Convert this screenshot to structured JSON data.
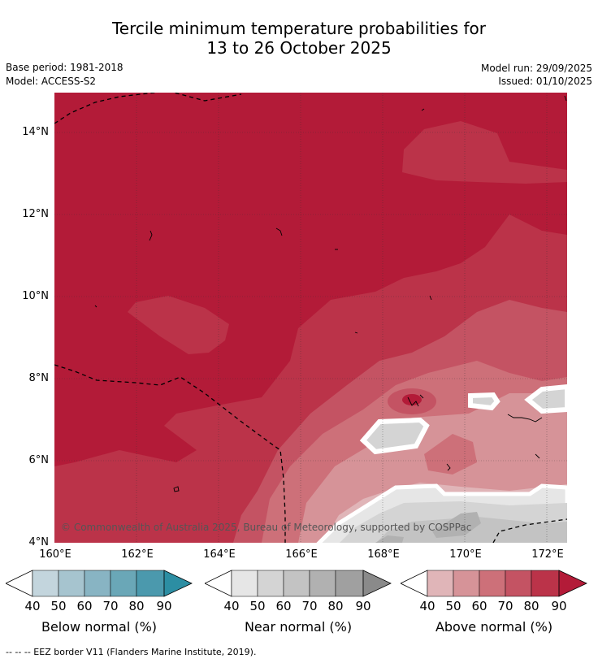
{
  "title": {
    "line1": "Tercile minimum temperature probabilities for",
    "line2": "13 to 26 October 2025"
  },
  "meta": {
    "base_period": "Base period: 1981-2018",
    "model": "Model: ACCESS-S2",
    "model_run": "Model run: 29/09/2025",
    "issued": "Issued: 01/10/2025"
  },
  "map": {
    "copyright": "© Commonwealth of Australia 2025, Bureau of Meteorology, supported by COSPPac",
    "y_ticks": [
      "14°N",
      "12°N",
      "10°N",
      "8°N",
      "6°N",
      "4°N"
    ],
    "x_ticks": [
      "160°E",
      "162°E",
      "164°E",
      "166°E",
      "168°E",
      "170°E",
      "172°E"
    ],
    "colors": {
      "above_90": "#b31b38",
      "above_80": "#bb3349",
      "above_70": "#c45363",
      "above_60": "#cd7079",
      "above_50": "#d69398",
      "above_40": "#e0b5b8",
      "near_40": "#e6e6e6",
      "near_50": "#d4d4d4",
      "near_60": "#c3c3c3",
      "near_70": "#b1b1b1",
      "near_80": "#a0a0a0"
    }
  },
  "colorbars": {
    "ticks": [
      "40",
      "50",
      "60",
      "70",
      "80",
      "90"
    ],
    "below": {
      "label": "Below normal (%)",
      "colors": [
        "#c3d5dd",
        "#a6c4cf",
        "#88b4c3",
        "#6aa7b7",
        "#4b99ad",
        "#2c8ea3"
      ]
    },
    "near": {
      "label": "Near normal (%)",
      "colors": [
        "#e6e6e6",
        "#d4d4d4",
        "#c3c3c3",
        "#b1b1b1",
        "#a0a0a0",
        "#8a8a8a"
      ]
    },
    "above": {
      "label": "Above normal (%)",
      "colors": [
        "#e0b5b8",
        "#d69398",
        "#cd7079",
        "#c45363",
        "#bb3349",
        "#b31b38"
      ]
    }
  },
  "footnote": "--  --  -- EEZ border V11 (Flanders Marine Institute, 2019)."
}
